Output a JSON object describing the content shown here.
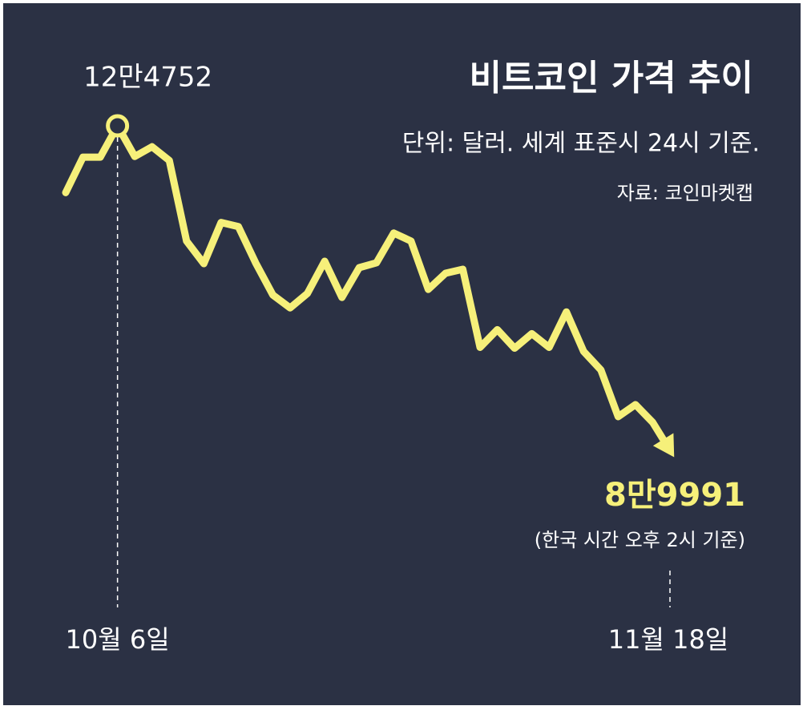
{
  "chart_data": {
    "type": "line",
    "title": "비트코인 가격 추이",
    "subtitle": "단위: 달러. 세계 표준시 24시 기준.",
    "source": "자료: 코인마켓캡",
    "annotation": "(한국 시간 오후 2시 기준)",
    "color": "#f6f07a",
    "categories": [
      null,
      null,
      null,
      "10월 6일",
      null,
      null,
      null,
      null,
      null,
      null,
      null,
      null,
      null,
      null,
      null,
      null,
      null,
      null,
      null,
      null,
      null,
      null,
      null,
      null,
      null,
      null,
      null,
      null,
      null,
      null,
      null,
      null,
      null,
      null,
      null,
      "11월 18일"
    ],
    "values": [
      117600,
      121390,
      121390,
      124752,
      121470,
      122510,
      121040,
      112410,
      109990,
      114400,
      113960,
      110080,
      106630,
      105250,
      106800,
      110250,
      106370,
      109560,
      110080,
      113270,
      112410,
      107230,
      108960,
      109390,
      101020,
      102920,
      100930,
      102490,
      101020,
      104820,
      100590,
      98600,
      93600,
      94890,
      92990,
      89991
    ],
    "value_labels": [
      null,
      null,
      null,
      "12만4752",
      null,
      null,
      null,
      null,
      null,
      null,
      null,
      null,
      null,
      null,
      null,
      null,
      null,
      null,
      null,
      null,
      null,
      null,
      null,
      null,
      null,
      null,
      null,
      null,
      null,
      null,
      null,
      null,
      null,
      null,
      null,
      "8만9991"
    ]
  }
}
